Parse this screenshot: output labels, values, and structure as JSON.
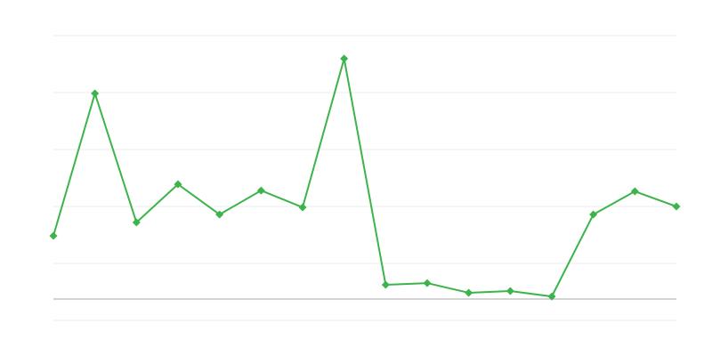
{
  "chart_data": {
    "type": "line",
    "title": "",
    "xlabel": "",
    "ylabel": "",
    "x": [
      1,
      2,
      3,
      4,
      5,
      6,
      7,
      8,
      9,
      10,
      11,
      12,
      13,
      14,
      15,
      16
    ],
    "series": [
      {
        "values": [
          22.2,
          72.2,
          26.9,
          40.3,
          29.7,
          38.1,
          32.2,
          84.4,
          5.0,
          5.6,
          2.2,
          2.8,
          0.9,
          29.7,
          37.8,
          32.5
        ]
      }
    ],
    "ylim": [
      -7.5,
      92.5
    ],
    "gridlines": [
      -7.5,
      12.5,
      32.5,
      52.5,
      72.5,
      92.5
    ],
    "baseline": 0,
    "grid": true,
    "marker": "diamond",
    "colors": {
      "line": "#3cb44b",
      "grid": "#eeeeee",
      "baseline": "#aaaaaa"
    }
  }
}
